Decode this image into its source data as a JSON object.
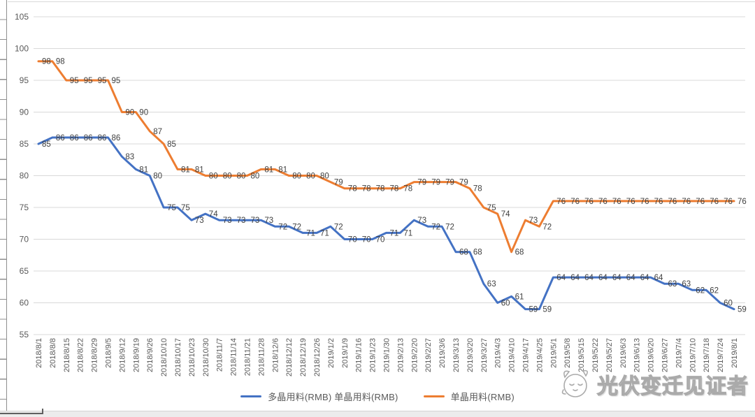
{
  "chart_data": {
    "type": "line",
    "x": [
      "2018/8/1",
      "2018/8/8",
      "2018/8/15",
      "2018/8/22",
      "2018/8/29",
      "2018/9/5",
      "2018/9/12",
      "2018/9/19",
      "2018/9/26",
      "2018/10/10",
      "2018/10/17",
      "2018/10/23",
      "2018/10/30",
      "2018/11/7",
      "2018/11/14",
      "2018/11/21",
      "2018/11/28",
      "2018/12/6",
      "2018/12/12",
      "2018/12/19",
      "2018/12/26",
      "2019/1/2",
      "2019/1/9",
      "2019/1/16",
      "2019/1/23",
      "2019/1/30",
      "2019/2/13",
      "2019/2/20",
      "2019/2/27",
      "2019/3/6",
      "2019/3/13",
      "2019/3/20",
      "2019/3/27",
      "2019/4/3",
      "2019/4/10",
      "2019/4/17",
      "2019/4/25",
      "2019/5/1",
      "2019/5/8",
      "2019/5/15",
      "2019/5/22",
      "2019/5/27",
      "2019/6/3",
      "2019/6/13",
      "2019/6/20",
      "2019/6/27",
      "2019/7/4",
      "2019/7/10",
      "2019/7/18",
      "2019/7/24",
      "2019/8/1"
    ],
    "series": [
      {
        "name": "多晶用料(RMB)",
        "color": "#4472C4",
        "values": [
          85,
          86,
          86,
          86,
          86,
          86,
          83,
          81,
          80,
          75,
          75,
          73,
          74,
          73,
          73,
          73,
          73,
          72,
          72,
          71,
          71,
          72,
          70,
          70,
          70,
          71,
          71,
          73,
          72,
          72,
          68,
          68,
          63,
          60,
          61,
          59,
          59,
          64,
          64,
          64,
          64,
          64,
          64,
          64,
          64,
          63,
          63,
          62,
          62,
          60,
          59
        ]
      },
      {
        "name": "单晶用料(RMB)",
        "color": "#ED7D31",
        "values": [
          98,
          98,
          95,
          95,
          95,
          95,
          90,
          90,
          87,
          85,
          81,
          81,
          80,
          80,
          80,
          80,
          81,
          81,
          80,
          80,
          80,
          79,
          78,
          78,
          78,
          78,
          78,
          79,
          79,
          79,
          79,
          78,
          75,
          74,
          68,
          73,
          72,
          76,
          76,
          76,
          76,
          76,
          76,
          76,
          76,
          76,
          76,
          76,
          76,
          76,
          76
        ]
      }
    ],
    "ylim": [
      55,
      105
    ],
    "yticks": [
      105,
      100,
      95,
      90,
      85,
      80,
      75,
      70,
      65,
      60,
      55
    ],
    "grid": "horizontal",
    "legend_position": "bottom",
    "data_labels": true
  },
  "legend": {
    "items": [
      {
        "label": "多晶用料(RMB) 单晶用料(RMB)",
        "color": "#4472C4"
      },
      {
        "label": "单晶用料(RMB)",
        "color": "#ED7D31"
      }
    ]
  },
  "watermark": {
    "text": "光伏变迁见证者"
  },
  "colors": {
    "poly_series": "#4472C4",
    "mono_series": "#ED7D31",
    "gridline": "#D9D9D9",
    "data_label": "#404040",
    "axis_label": "#595959",
    "watermark": "#AAAAAA"
  }
}
